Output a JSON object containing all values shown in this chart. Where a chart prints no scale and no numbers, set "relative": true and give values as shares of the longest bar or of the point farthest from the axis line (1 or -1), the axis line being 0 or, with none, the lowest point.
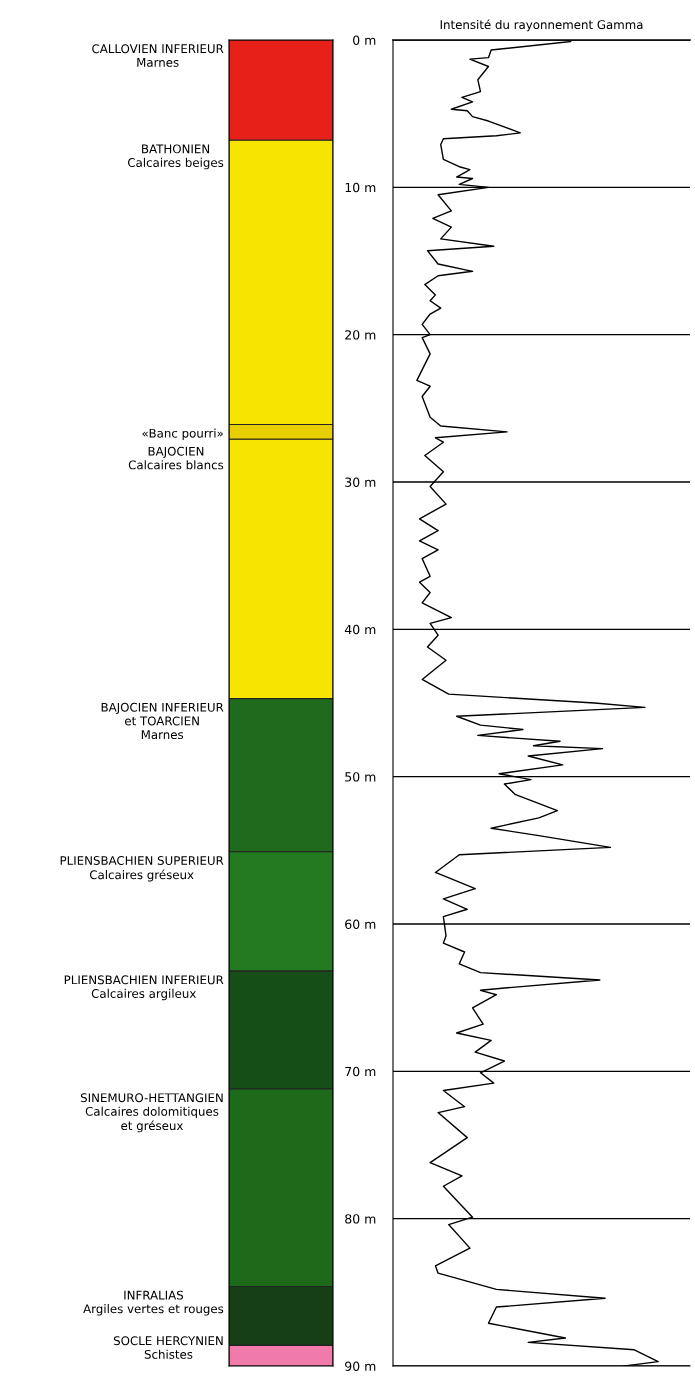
{
  "chart_data": [
    {
      "type": "bar",
      "stacked": true,
      "categories": [
        null
      ],
      "ylim": [
        90,
        0
      ],
      "tick_labels": false,
      "series": [
        {
          "name": "CALLOVIEN INFERIEUR\nMarnes",
          "color": "#e8201a",
          "values": [
            6.8
          ]
        },
        {
          "name": "BATHONIEN\nCalcaires beiges",
          "color": "#f7e400",
          "values": [
            19.3
          ]
        },
        {
          "name": "«Banc pourri»",
          "color": "#e8d000",
          "values": [
            1.0
          ]
        },
        {
          "name": "BAJOCIEN\nCalcaires blancs",
          "color": "#f7e400",
          "values": [
            17.6
          ]
        },
        {
          "name": "BAJOCIEN INFERIEUR\net TOARCIEN\nMarnes",
          "color": "#1f6a1c",
          "values": [
            10.4
          ]
        },
        {
          "name": "PLIENSBACHIEN SUPERIEUR\nCalcaires gréseux",
          "color": "#237a20",
          "values": [
            8.1
          ]
        },
        {
          "name": "PLIENSBACHIEN INFERIEUR\nCalcaires argileux",
          "color": "#154e16",
          "values": [
            8.0
          ]
        },
        {
          "name": "SINEMURO-HETTANGIEN\nCalcaires dolomitiques\net gréseux",
          "color": "#1d6a1b",
          "values": [
            13.4
          ]
        },
        {
          "name": "INFRALIAS\nArgiles vertes et rouges",
          "color": "#163f16",
          "values": [
            4.0
          ]
        },
        {
          "name": "SOCLE HERCYNIEN\nSchistes",
          "color": "#f07aaa",
          "values": [
            1.4
          ]
        }
      ]
    },
    {
      "type": "line",
      "title": "Intensité du rayonnement Gamma",
      "orientation": "horizontal",
      "relative": true,
      "color": "#000000",
      "grid": "y",
      "tick_labels": "y",
      "ylim": [
        90,
        0
      ],
      "yticks": [
        {
          "value": 0,
          "label": "0 m"
        },
        {
          "value": 10,
          "label": "10 m"
        },
        {
          "value": 20,
          "label": "20 m"
        },
        {
          "value": 30,
          "label": "30 m"
        },
        {
          "value": 40,
          "label": "40 m"
        },
        {
          "value": 50,
          "label": "50 m"
        },
        {
          "value": 60,
          "label": "60 m"
        },
        {
          "value": 70,
          "label": "70 m"
        },
        {
          "value": 80,
          "label": "80 m"
        },
        {
          "value": 90,
          "label": "90 m"
        }
      ],
      "x": [
        0.1,
        0.68,
        1.2,
        1.3,
        1.8,
        2.7,
        3.5,
        3.9,
        4.2,
        4.7,
        4.8,
        5.2,
        5.5,
        6.3,
        6.5,
        6.7,
        7.1,
        8.1,
        8.6,
        8.8,
        9.3,
        9.4,
        9.8,
        10.0,
        10.5,
        11.6,
        12.1,
        12.7,
        13.5,
        14.0,
        14.3,
        15.2,
        15.7,
        16.0,
        16.6,
        17.3,
        17.7,
        18.2,
        18.6,
        19.3,
        20.0,
        20.2,
        21.3,
        23.1,
        23.5,
        24.2,
        25.6,
        26.2,
        26.6,
        27.0,
        27.3,
        28.2,
        29.3,
        30.3,
        31.5,
        32.5,
        33.3,
        34.0,
        34.6,
        35.2,
        36.4,
        36.8,
        37.5,
        38.2,
        39.2,
        39.6,
        40.4,
        41.2,
        42.1,
        43.4,
        44.4,
        45.0,
        45.3,
        45.9,
        46.5,
        46.8,
        47.2,
        47.6,
        47.9,
        48.1,
        48.6,
        49.2,
        49.8,
        50.2,
        50.5,
        51.2,
        52.3,
        52.8,
        53.5,
        54.0,
        54.8,
        55.3,
        56.5,
        57.6,
        58.3,
        59.0,
        59.5,
        60.8,
        61.3,
        61.9,
        62.7,
        63.3,
        63.8,
        64.3,
        64.5,
        64.8,
        65.7,
        66.8,
        67.4,
        67.9,
        68.7,
        69.3,
        70.1,
        70.8,
        71.3,
        72.4,
        72.8,
        74.5,
        76.2,
        77.1,
        77.8,
        79.9,
        80.4,
        82.0,
        83.2,
        83.7,
        84.8,
        85.4,
        86.0,
        87.1,
        88.1,
        88.4,
        88.9,
        89.7,
        90.0
      ],
      "values": [
        0.67,
        0.37,
        0.36,
        0.29,
        0.36,
        0.32,
        0.33,
        0.26,
        0.3,
        0.22,
        0.28,
        0.3,
        0.36,
        0.48,
        0.39,
        0.19,
        0.18,
        0.19,
        0.25,
        0.29,
        0.24,
        0.3,
        0.25,
        0.36,
        0.17,
        0.22,
        0.15,
        0.22,
        0.18,
        0.38,
        0.13,
        0.17,
        0.3,
        0.17,
        0.12,
        0.16,
        0.14,
        0.18,
        0.14,
        0.11,
        0.14,
        0.11,
        0.14,
        0.09,
        0.14,
        0.11,
        0.14,
        0.18,
        0.43,
        0.16,
        0.19,
        0.12,
        0.19,
        0.14,
        0.2,
        0.1,
        0.17,
        0.1,
        0.17,
        0.11,
        0.14,
        0.1,
        0.14,
        0.11,
        0.22,
        0.14,
        0.17,
        0.13,
        0.2,
        0.11,
        0.21,
        0.76,
        0.95,
        0.24,
        0.33,
        0.49,
        0.32,
        0.63,
        0.53,
        0.79,
        0.51,
        0.64,
        0.4,
        0.52,
        0.42,
        0.46,
        0.62,
        0.55,
        0.37,
        0.55,
        0.82,
        0.25,
        0.16,
        0.31,
        0.19,
        0.28,
        0.19,
        0.2,
        0.19,
        0.27,
        0.25,
        0.33,
        0.78,
        0.45,
        0.33,
        0.39,
        0.3,
        0.34,
        0.24,
        0.37,
        0.31,
        0.42,
        0.33,
        0.38,
        0.19,
        0.27,
        0.17,
        0.28,
        0.14,
        0.26,
        0.19,
        0.3,
        0.21,
        0.29,
        0.16,
        0.17,
        0.39,
        0.8,
        0.39,
        0.36,
        0.65,
        0.51,
        0.91,
        1.0,
        0.87
      ]
    }
  ]
}
